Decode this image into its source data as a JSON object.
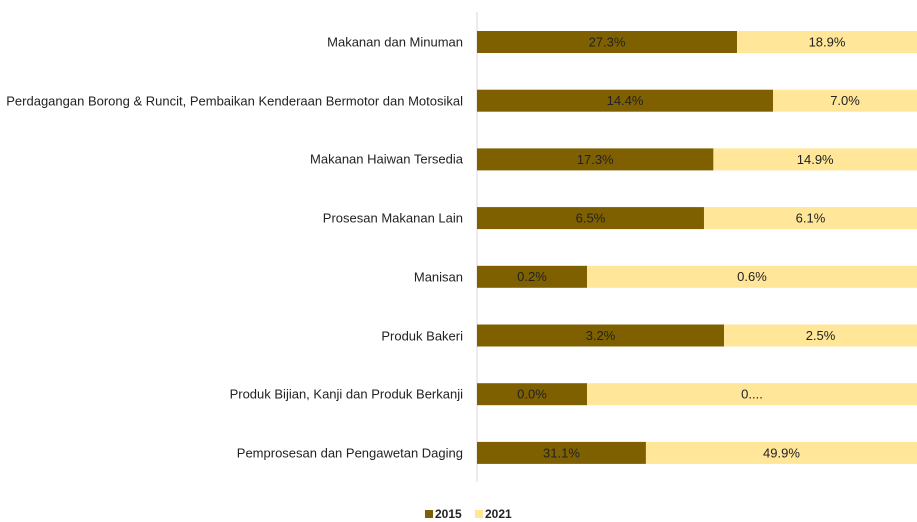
{
  "chart_data": {
    "type": "bar",
    "orientation": "horizontal",
    "stacking": "percent",
    "categories": [
      "Makanan dan Minuman",
      "Perdagangan Borong & Runcit, Pembaikan Kenderaan Bermotor dan Motosikal",
      "Makanan Haiwan Tersedia",
      "Prosesan Makanan Lain",
      "Manisan",
      "Produk Bakeri",
      "Produk Bijian, Kanji dan Produk Berkanji",
      "Pemprosesan dan Pengawetan Daging"
    ],
    "series": [
      {
        "name": "2015",
        "color": "#7f6000",
        "values": [
          27.3,
          14.4,
          17.3,
          6.5,
          0.2,
          3.2,
          0.01,
          31.1
        ],
        "value_labels": [
          "27.3%",
          "14.4%",
          "17.3%",
          "6.5%",
          "0.2%",
          "3.2%",
          "0.0%",
          "31.1%"
        ]
      },
      {
        "name": "2021",
        "color": "#ffe699",
        "values": [
          18.9,
          7.0,
          14.9,
          6.1,
          0.6,
          2.5,
          0.03,
          49.9
        ],
        "value_labels": [
          "18.9%",
          "7.0%",
          "14.9%",
          "6.1%",
          "0.6%",
          "2.5%",
          "0....",
          "49.9%"
        ]
      }
    ],
    "legend": "bottom"
  }
}
